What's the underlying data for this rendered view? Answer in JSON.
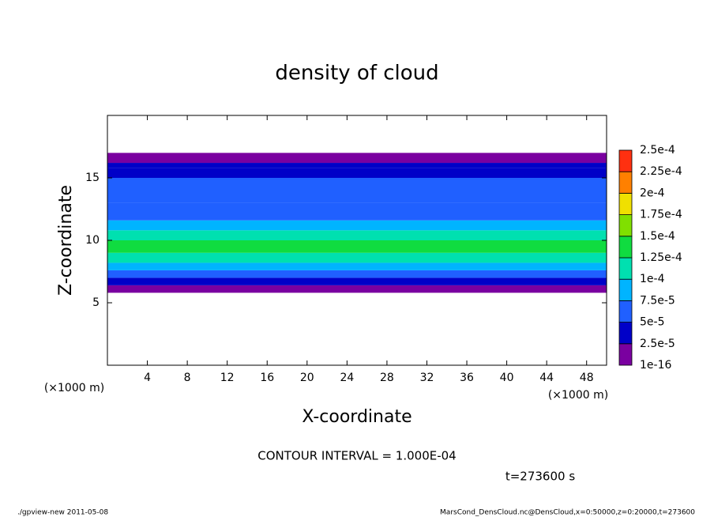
{
  "chart_data": {
    "type": "contour",
    "title": "density of cloud",
    "x_label": "X-coordinate",
    "y_label": "Z-coordinate",
    "x_unit_left": "(×1000 m)",
    "x_unit_right": "(×1000 m)",
    "xlim": [
      0,
      50
    ],
    "ylim": [
      0,
      20
    ],
    "xticks": [
      4,
      8,
      12,
      16,
      20,
      24,
      28,
      32,
      36,
      40,
      44,
      48
    ],
    "yticks": [
      5,
      10,
      15
    ],
    "z_edges": [
      5.8,
      6.4,
      7.0,
      7.6,
      8.2,
      9.0,
      10.0,
      10.8,
      11.6,
      13.0,
      15.0,
      15.8,
      16.2,
      17.0
    ],
    "density": [
      1e-05,
      3e-05,
      6e-05,
      8e-05,
      0.00011,
      0.00013,
      0.00011,
      8.5e-05,
      6.5e-05,
      5.5e-05,
      4e-05,
      3e-05,
      1e-05
    ],
    "colorbar_levels": [
      {
        "value": 1e-16,
        "label": "1e-16"
      },
      {
        "value": 2.5e-05,
        "label": "2.5e-5"
      },
      {
        "value": 5e-05,
        "label": "5e-5"
      },
      {
        "value": 7.5e-05,
        "label": "7.5e-5"
      },
      {
        "value": 0.0001,
        "label": "1e-4"
      },
      {
        "value": 0.000125,
        "label": "1.25e-4"
      },
      {
        "value": 0.00015,
        "label": "1.5e-4"
      },
      {
        "value": 0.000175,
        "label": "1.75e-4"
      },
      {
        "value": 0.0002,
        "label": "2e-4"
      },
      {
        "value": 0.000225,
        "label": "2.25e-4"
      },
      {
        "value": 0.00025,
        "label": "2.5e-4"
      }
    ],
    "colorbar_colors": [
      "#7a00a0",
      "#0000c8",
      "#2060ff",
      "#00b4ff",
      "#00e0b0",
      "#10dc40",
      "#80e000",
      "#f0e000",
      "#ff8000",
      "#ff3010"
    ],
    "contour_interval_text": "CONTOUR INTERVAL = 1.000E-04",
    "time_text": "t=273600 s",
    "footer_left": "./gpview-new   2011-05-08",
    "footer_right": "MarsCond_DensCloud.nc@DensCloud,x=0:50000,z=0:20000,t=273600"
  }
}
